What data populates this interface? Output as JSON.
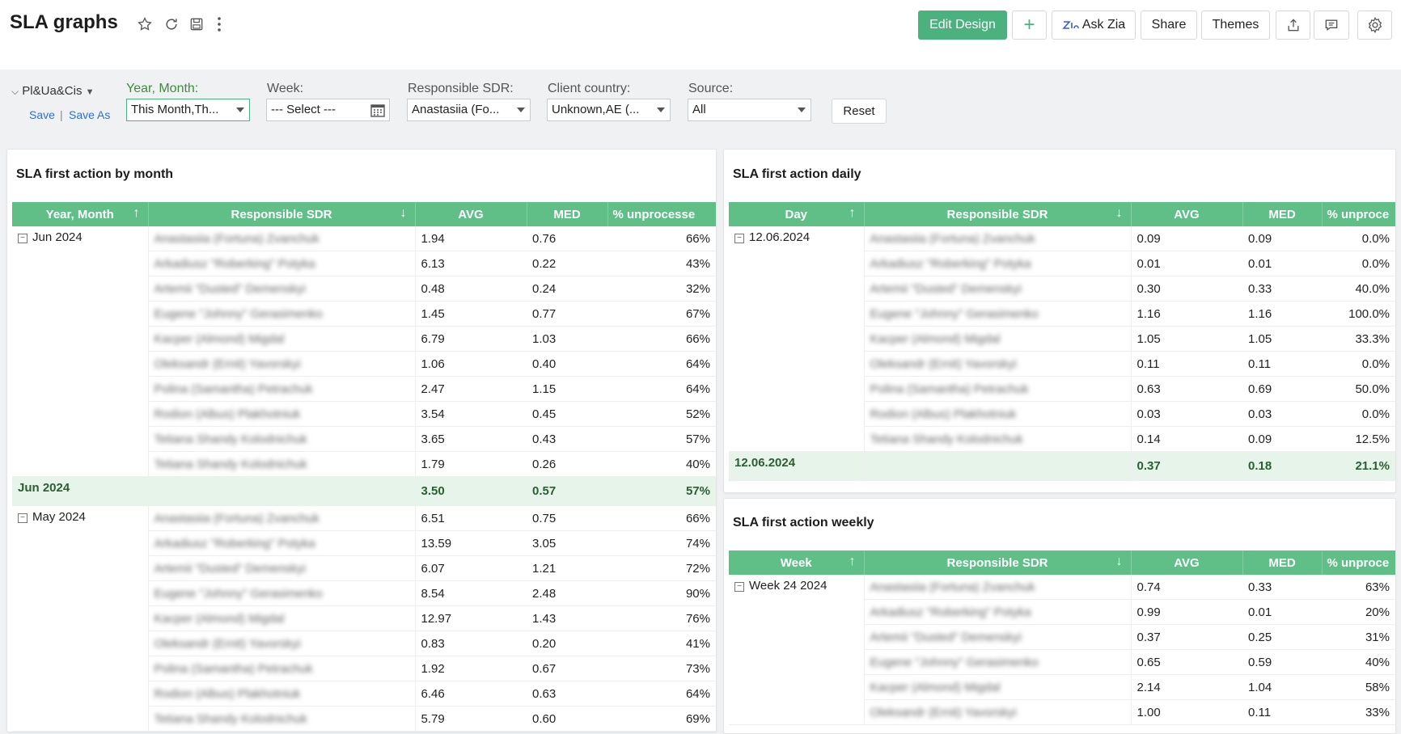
{
  "header": {
    "title": "SLA graphs",
    "edit_design": "Edit Design",
    "add": "+",
    "ask_zia": "Ask Zia",
    "share": "Share",
    "themes": "Themes"
  },
  "filters": {
    "view_name": "Pl&Ua&Cis",
    "save": "Save",
    "save_as": "Save As",
    "year_month_label": "Year, Month:",
    "year_month_value": "This Month,Th...",
    "week_label": "Week:",
    "week_value": "--- Select ---",
    "sdr_label": "Responsible SDR:",
    "sdr_value": "Anastasiia (Fo...",
    "country_label": "Client country:",
    "country_value": "Unknown,AE (...",
    "source_label": "Source:",
    "source_value": "All",
    "reset": "Reset"
  },
  "monthly": {
    "title": "SLA first action by month",
    "columns": [
      "Year, Month",
      "Responsible SDR",
      "AVG",
      "MED",
      "% unprocesse"
    ],
    "groups": [
      {
        "label": "Jun 2024",
        "rows": [
          {
            "sdr": "Anastasiia (Fortuna) Zvanchuk",
            "avg": "1.94",
            "med": "0.76",
            "pct": "66%"
          },
          {
            "sdr": "Arkadiusz \"Roberking\" Potyka",
            "avg": "6.13",
            "med": "0.22",
            "pct": "43%"
          },
          {
            "sdr": "Artemii \"Dusted\" Demenskyi",
            "avg": "0.48",
            "med": "0.24",
            "pct": "32%"
          },
          {
            "sdr": "Eugene \"Johnny\" Gerasimenko",
            "avg": "1.45",
            "med": "0.77",
            "pct": "67%"
          },
          {
            "sdr": "Kacper (Almond) Migdal",
            "avg": "6.79",
            "med": "1.03",
            "pct": "66%"
          },
          {
            "sdr": "Oleksandr (Ernit) Yavorskyi",
            "avg": "1.06",
            "med": "0.40",
            "pct": "64%"
          },
          {
            "sdr": "Polina (Samantha) Petrachuk",
            "avg": "2.47",
            "med": "1.15",
            "pct": "64%"
          },
          {
            "sdr": "Rodion (Albus) Plakhotniuk",
            "avg": "3.54",
            "med": "0.45",
            "pct": "52%"
          },
          {
            "sdr": "Tetiana Shandy Kolodnichuk",
            "avg": "3.65",
            "med": "0.43",
            "pct": "57%"
          },
          {
            "sdr": "Tetiana Shandy Kolodnichuk",
            "avg": "1.79",
            "med": "0.26",
            "pct": "40%"
          }
        ],
        "total": {
          "label": "Jun 2024",
          "avg": "3.50",
          "med": "0.57",
          "pct": "57%"
        }
      },
      {
        "label": "May 2024",
        "rows": [
          {
            "sdr": "Anastasiia (Fortuna) Zvanchuk",
            "avg": "6.51",
            "med": "0.75",
            "pct": "66%"
          },
          {
            "sdr": "Arkadiusz \"Roberking\" Potyka",
            "avg": "13.59",
            "med": "3.05",
            "pct": "74%"
          },
          {
            "sdr": "Artemii \"Dusted\" Demenskyi",
            "avg": "6.07",
            "med": "1.21",
            "pct": "72%"
          },
          {
            "sdr": "Eugene \"Johnny\" Gerasimenko",
            "avg": "8.54",
            "med": "2.48",
            "pct": "90%"
          },
          {
            "sdr": "Kacper (Almond) Migdal",
            "avg": "12.97",
            "med": "1.43",
            "pct": "76%"
          },
          {
            "sdr": "Oleksandr (Ernit) Yavorskyi",
            "avg": "0.83",
            "med": "0.20",
            "pct": "41%"
          },
          {
            "sdr": "Polina (Samantha) Petrachuk",
            "avg": "1.92",
            "med": "0.67",
            "pct": "73%"
          },
          {
            "sdr": "Rodion (Albus) Plakhotniuk",
            "avg": "6.46",
            "med": "0.63",
            "pct": "64%"
          },
          {
            "sdr": "Tetiana Shandy Kolodnichuk",
            "avg": "5.79",
            "med": "0.60",
            "pct": "69%"
          }
        ]
      }
    ]
  },
  "daily": {
    "title": "SLA first action daily",
    "columns": [
      "Day",
      "Responsible SDR",
      "AVG",
      "MED",
      "% unproce"
    ],
    "groups": [
      {
        "label": "12.06.2024",
        "rows": [
          {
            "sdr": "Anastasiia (Fortuna) Zvanchuk",
            "avg": "0.09",
            "med": "0.09",
            "pct": "0.0%"
          },
          {
            "sdr": "Arkadiusz \"Roberking\" Potyka",
            "avg": "0.01",
            "med": "0.01",
            "pct": "0.0%"
          },
          {
            "sdr": "Artemii \"Dusted\" Demenskyi",
            "avg": "0.30",
            "med": "0.33",
            "pct": "40.0%"
          },
          {
            "sdr": "Eugene \"Johnny\" Gerasimenko",
            "avg": "1.16",
            "med": "1.16",
            "pct": "100.0%"
          },
          {
            "sdr": "Kacper (Almond) Migdal",
            "avg": "1.05",
            "med": "1.05",
            "pct": "33.3%"
          },
          {
            "sdr": "Oleksandr (Ernit) Yavorskyi",
            "avg": "0.11",
            "med": "0.11",
            "pct": "0.0%"
          },
          {
            "sdr": "Polina (Samantha) Petrachuk",
            "avg": "0.63",
            "med": "0.69",
            "pct": "50.0%"
          },
          {
            "sdr": "Rodion (Albus) Plakhotniuk",
            "avg": "0.03",
            "med": "0.03",
            "pct": "0.0%"
          },
          {
            "sdr": "Tetiana Shandy Kolodnichuk",
            "avg": "0.14",
            "med": "0.09",
            "pct": "12.5%"
          }
        ],
        "total": {
          "label": "12.06.2024",
          "avg": "0.37",
          "med": "0.18",
          "pct": "21.1%"
        }
      }
    ]
  },
  "weekly": {
    "title": "SLA first action weekly",
    "columns": [
      "Week",
      "Responsible SDR",
      "AVG",
      "MED",
      "% unproce"
    ],
    "groups": [
      {
        "label": "Week 24 2024",
        "rows": [
          {
            "sdr": "Anastasiia (Fortuna) Zvanchuk",
            "avg": "0.74",
            "med": "0.33",
            "pct": "63%"
          },
          {
            "sdr": "Arkadiusz \"Roberking\" Potyka",
            "avg": "0.99",
            "med": "0.01",
            "pct": "20%"
          },
          {
            "sdr": "Artemii \"Dusted\" Demenskyi",
            "avg": "0.37",
            "med": "0.25",
            "pct": "31%"
          },
          {
            "sdr": "Eugene \"Johnny\" Gerasimenko",
            "avg": "0.65",
            "med": "0.59",
            "pct": "40%"
          },
          {
            "sdr": "Kacper (Almond) Migdal",
            "avg": "2.14",
            "med": "1.04",
            "pct": "58%"
          },
          {
            "sdr": "Oleksandr (Ernit) Yavorskyi",
            "avg": "1.00",
            "med": "0.11",
            "pct": "33%"
          }
        ]
      }
    ]
  }
}
